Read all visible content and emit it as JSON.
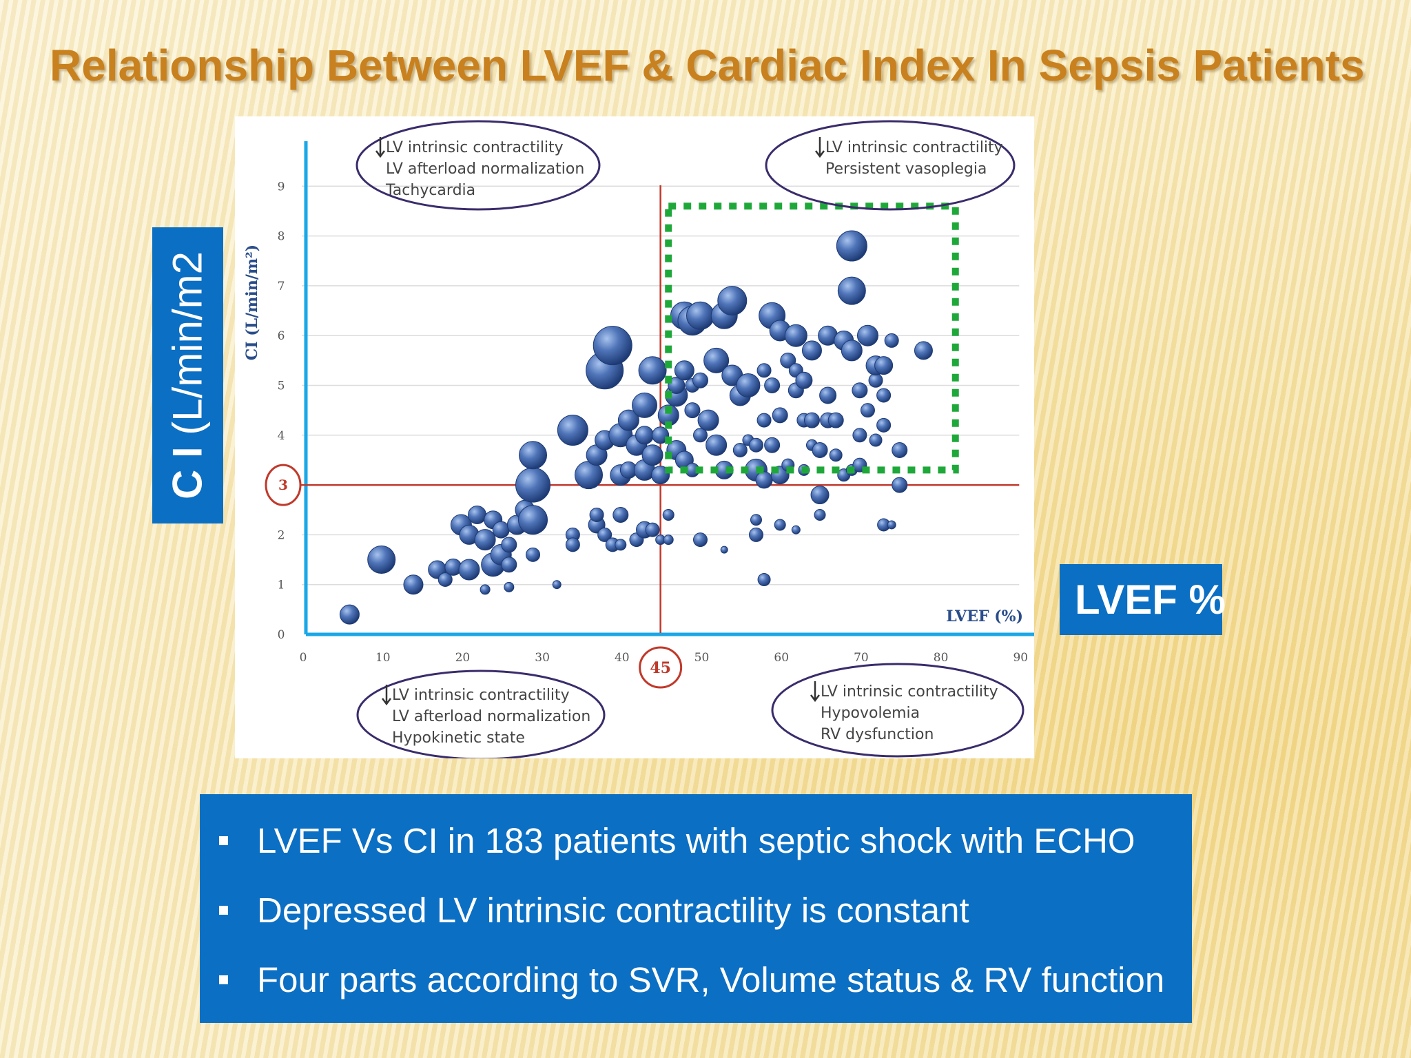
{
  "slide": {
    "title": "Relationship Between LVEF & Cardiac Index In Sepsis Patients"
  },
  "labels": {
    "ci_main": "C I",
    "ci_unit": " (L/min/m2",
    "lvef": "LVEF %"
  },
  "bullets": [
    "LVEF Vs CI in 183 patients with septic shock with ECHO",
    "Depressed LV intrinsic contractility is constant",
    "Four parts according to SVR, Volume status & RV function"
  ],
  "quadrant_notes": {
    "top_left": [
      "LV intrinsic contractility",
      "LV afterload normalization",
      "Tachycardia"
    ],
    "top_right": [
      "LV intrinsic contractility",
      "Persistent vasoplegia"
    ],
    "bottom_left": [
      "LV intrinsic contractility",
      "LV afterload normalization",
      "Hypokinetic state"
    ],
    "bottom_right": [
      "LV intrinsic contractility",
      "Hypovolemia",
      "RV dysfunction"
    ]
  },
  "colors": {
    "title": "#c8811e",
    "accent_blue": "#0b6fc4",
    "axis_line": "#1aa7e8",
    "threshold_line": "#c0392b",
    "highlight_box": "#1fa83a",
    "bubble": "#3d62a8"
  },
  "chart_data": {
    "type": "scatter",
    "variant": "bubble",
    "xlabel": "LVEF (%)",
    "ylabel": "CI (L/min/m²)",
    "xlim": [
      0,
      90
    ],
    "ylim": [
      0,
      10
    ],
    "x_ticks": [
      0,
      10,
      20,
      30,
      40,
      50,
      60,
      70,
      80,
      90
    ],
    "y_ticks": [
      0,
      1,
      2,
      3,
      4,
      5,
      6,
      7,
      8,
      9
    ],
    "grid": "horizontal",
    "thresholds": {
      "x": 45,
      "y": 3,
      "x_label": "45",
      "y_label": "3"
    },
    "highlight_region": {
      "x_range": [
        46,
        82
      ],
      "y_range": [
        3.3,
        8.6
      ],
      "style": "dotted-green"
    },
    "points": [
      {
        "x": 6,
        "y": 0.4,
        "r": 14
      },
      {
        "x": 10,
        "y": 1.5,
        "r": 20
      },
      {
        "x": 14,
        "y": 1.0,
        "r": 14
      },
      {
        "x": 17,
        "y": 1.3,
        "r": 13
      },
      {
        "x": 18,
        "y": 1.1,
        "r": 10
      },
      {
        "x": 19,
        "y": 1.35,
        "r": 12
      },
      {
        "x": 21,
        "y": 1.3,
        "r": 15
      },
      {
        "x": 23,
        "y": 0.9,
        "r": 7
      },
      {
        "x": 24,
        "y": 1.4,
        "r": 17
      },
      {
        "x": 25,
        "y": 1.6,
        "r": 15
      },
      {
        "x": 26,
        "y": 1.4,
        "r": 11
      },
      {
        "x": 26,
        "y": 0.95,
        "r": 7
      },
      {
        "x": 20,
        "y": 2.2,
        "r": 15
      },
      {
        "x": 21,
        "y": 2.0,
        "r": 14
      },
      {
        "x": 22,
        "y": 2.4,
        "r": 13
      },
      {
        "x": 23,
        "y": 1.9,
        "r": 15
      },
      {
        "x": 24,
        "y": 2.3,
        "r": 13
      },
      {
        "x": 25,
        "y": 2.1,
        "r": 12
      },
      {
        "x": 26,
        "y": 1.8,
        "r": 11
      },
      {
        "x": 27,
        "y": 2.2,
        "r": 14
      },
      {
        "x": 28,
        "y": 2.5,
        "r": 14
      },
      {
        "x": 29,
        "y": 2.3,
        "r": 21
      },
      {
        "x": 29,
        "y": 3.0,
        "r": 25
      },
      {
        "x": 29,
        "y": 1.6,
        "r": 10
      },
      {
        "x": 29,
        "y": 3.6,
        "r": 20
      },
      {
        "x": 32,
        "y": 1.0,
        "r": 6
      },
      {
        "x": 34,
        "y": 2.0,
        "r": 10
      },
      {
        "x": 34,
        "y": 1.8,
        "r": 10
      },
      {
        "x": 34,
        "y": 4.1,
        "r": 22
      },
      {
        "x": 36,
        "y": 3.2,
        "r": 20
      },
      {
        "x": 37,
        "y": 2.2,
        "r": 12
      },
      {
        "x": 37,
        "y": 3.6,
        "r": 15
      },
      {
        "x": 37,
        "y": 2.4,
        "r": 10
      },
      {
        "x": 38,
        "y": 2.0,
        "r": 10
      },
      {
        "x": 38,
        "y": 3.9,
        "r": 14
      },
      {
        "x": 38,
        "y": 5.3,
        "r": 27
      },
      {
        "x": 39,
        "y": 5.8,
        "r": 28
      },
      {
        "x": 39,
        "y": 1.8,
        "r": 10
      },
      {
        "x": 40,
        "y": 2.4,
        "r": 11
      },
      {
        "x": 40,
        "y": 3.2,
        "r": 15
      },
      {
        "x": 40,
        "y": 4.0,
        "r": 17
      },
      {
        "x": 40,
        "y": 1.8,
        "r": 8
      },
      {
        "x": 41,
        "y": 3.3,
        "r": 12
      },
      {
        "x": 41,
        "y": 4.3,
        "r": 15
      },
      {
        "x": 42,
        "y": 1.9,
        "r": 10
      },
      {
        "x": 42,
        "y": 3.8,
        "r": 15
      },
      {
        "x": 43,
        "y": 2.1,
        "r": 12
      },
      {
        "x": 43,
        "y": 3.3,
        "r": 15
      },
      {
        "x": 43,
        "y": 4.0,
        "r": 13
      },
      {
        "x": 43,
        "y": 4.6,
        "r": 18
      },
      {
        "x": 44,
        "y": 5.3,
        "r": 20
      },
      {
        "x": 44,
        "y": 3.6,
        "r": 15
      },
      {
        "x": 44,
        "y": 2.1,
        "r": 10
      },
      {
        "x": 45,
        "y": 3.2,
        "r": 13
      },
      {
        "x": 45,
        "y": 4.0,
        "r": 12
      },
      {
        "x": 45,
        "y": 1.9,
        "r": 7
      },
      {
        "x": 46,
        "y": 2.4,
        "r": 8
      },
      {
        "x": 46,
        "y": 1.9,
        "r": 7
      },
      {
        "x": 46,
        "y": 4.4,
        "r": 15
      },
      {
        "x": 47,
        "y": 3.7,
        "r": 14
      },
      {
        "x": 47,
        "y": 4.8,
        "r": 16
      },
      {
        "x": 47,
        "y": 5.0,
        "r": 12
      },
      {
        "x": 48,
        "y": 5.3,
        "r": 14
      },
      {
        "x": 48,
        "y": 3.5,
        "r": 13
      },
      {
        "x": 48,
        "y": 6.4,
        "r": 20
      },
      {
        "x": 49,
        "y": 3.3,
        "r": 10
      },
      {
        "x": 49,
        "y": 5.0,
        "r": 10
      },
      {
        "x": 49,
        "y": 4.5,
        "r": 11
      },
      {
        "x": 49,
        "y": 6.3,
        "r": 21
      },
      {
        "x": 50,
        "y": 5.1,
        "r": 11
      },
      {
        "x": 50,
        "y": 4.0,
        "r": 10
      },
      {
        "x": 50,
        "y": 6.4,
        "r": 20
      },
      {
        "x": 50,
        "y": 1.9,
        "r": 10
      },
      {
        "x": 51,
        "y": 4.3,
        "r": 15
      },
      {
        "x": 52,
        "y": 3.8,
        "r": 15
      },
      {
        "x": 52,
        "y": 5.5,
        "r": 18
      },
      {
        "x": 53,
        "y": 3.3,
        "r": 13
      },
      {
        "x": 53,
        "y": 6.4,
        "r": 19
      },
      {
        "x": 53,
        "y": 1.7,
        "r": 5
      },
      {
        "x": 54,
        "y": 5.2,
        "r": 15
      },
      {
        "x": 54,
        "y": 6.7,
        "r": 21
      },
      {
        "x": 55,
        "y": 4.8,
        "r": 15
      },
      {
        "x": 55,
        "y": 3.7,
        "r": 10
      },
      {
        "x": 56,
        "y": 5.0,
        "r": 17
      },
      {
        "x": 56,
        "y": 3.9,
        "r": 8
      },
      {
        "x": 57,
        "y": 3.3,
        "r": 16
      },
      {
        "x": 57,
        "y": 3.8,
        "r": 10
      },
      {
        "x": 57,
        "y": 2.0,
        "r": 10
      },
      {
        "x": 57,
        "y": 2.3,
        "r": 8
      },
      {
        "x": 58,
        "y": 4.3,
        "r": 10
      },
      {
        "x": 58,
        "y": 5.3,
        "r": 10
      },
      {
        "x": 58,
        "y": 3.1,
        "r": 12
      },
      {
        "x": 58,
        "y": 1.1,
        "r": 9
      },
      {
        "x": 59,
        "y": 6.4,
        "r": 19
      },
      {
        "x": 59,
        "y": 3.8,
        "r": 11
      },
      {
        "x": 59,
        "y": 5.0,
        "r": 11
      },
      {
        "x": 60,
        "y": 4.4,
        "r": 11
      },
      {
        "x": 60,
        "y": 6.1,
        "r": 15
      },
      {
        "x": 60,
        "y": 3.2,
        "r": 13
      },
      {
        "x": 60,
        "y": 2.2,
        "r": 8
      },
      {
        "x": 61,
        "y": 5.5,
        "r": 11
      },
      {
        "x": 61,
        "y": 3.4,
        "r": 9
      },
      {
        "x": 62,
        "y": 6.0,
        "r": 16
      },
      {
        "x": 62,
        "y": 4.9,
        "r": 11
      },
      {
        "x": 62,
        "y": 5.3,
        "r": 10
      },
      {
        "x": 62,
        "y": 2.1,
        "r": 6
      },
      {
        "x": 63,
        "y": 4.3,
        "r": 10
      },
      {
        "x": 63,
        "y": 3.3,
        "r": 8
      },
      {
        "x": 63,
        "y": 5.1,
        "r": 12
      },
      {
        "x": 64,
        "y": 5.7,
        "r": 14
      },
      {
        "x": 64,
        "y": 4.3,
        "r": 11
      },
      {
        "x": 64,
        "y": 3.8,
        "r": 8
      },
      {
        "x": 65,
        "y": 2.4,
        "r": 8
      },
      {
        "x": 65,
        "y": 3.7,
        "r": 11
      },
      {
        "x": 65,
        "y": 2.8,
        "r": 13
      },
      {
        "x": 66,
        "y": 6.0,
        "r": 14
      },
      {
        "x": 66,
        "y": 4.8,
        "r": 12
      },
      {
        "x": 66,
        "y": 4.3,
        "r": 11
      },
      {
        "x": 67,
        "y": 4.3,
        "r": 11
      },
      {
        "x": 67,
        "y": 3.6,
        "r": 9
      },
      {
        "x": 68,
        "y": 5.9,
        "r": 14
      },
      {
        "x": 68,
        "y": 3.2,
        "r": 9
      },
      {
        "x": 69,
        "y": 5.7,
        "r": 15
      },
      {
        "x": 69,
        "y": 6.9,
        "r": 20
      },
      {
        "x": 69,
        "y": 7.8,
        "r": 22
      },
      {
        "x": 69,
        "y": 3.3,
        "r": 8
      },
      {
        "x": 70,
        "y": 4.9,
        "r": 11
      },
      {
        "x": 70,
        "y": 4.0,
        "r": 10
      },
      {
        "x": 70,
        "y": 3.4,
        "r": 10
      },
      {
        "x": 71,
        "y": 6.0,
        "r": 15
      },
      {
        "x": 71,
        "y": 4.5,
        "r": 10
      },
      {
        "x": 72,
        "y": 5.1,
        "r": 10
      },
      {
        "x": 72,
        "y": 3.9,
        "r": 9
      },
      {
        "x": 72,
        "y": 5.4,
        "r": 14
      },
      {
        "x": 73,
        "y": 4.8,
        "r": 10
      },
      {
        "x": 73,
        "y": 5.4,
        "r": 13
      },
      {
        "x": 73,
        "y": 4.2,
        "r": 10
      },
      {
        "x": 73,
        "y": 2.2,
        "r": 9
      },
      {
        "x": 74,
        "y": 5.9,
        "r": 10
      },
      {
        "x": 74,
        "y": 2.2,
        "r": 6
      },
      {
        "x": 75,
        "y": 3.7,
        "r": 11
      },
      {
        "x": 75,
        "y": 3.0,
        "r": 11
      },
      {
        "x": 78,
        "y": 5.7,
        "r": 13
      }
    ]
  }
}
